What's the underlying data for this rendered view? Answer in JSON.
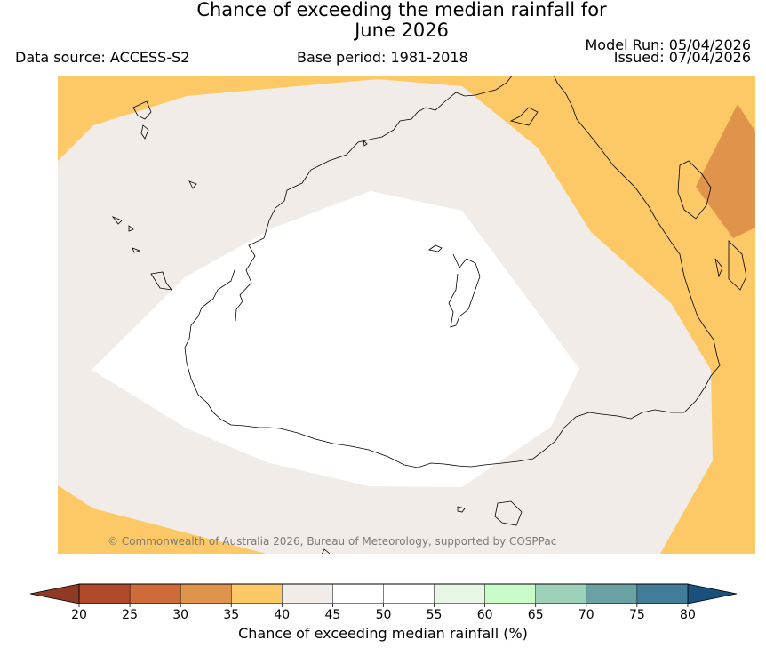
{
  "header": {
    "title_line1": "Chance of exceeding the median rainfall for",
    "title_line2": "June 2026",
    "data_source": "Data source: ACCESS-S2",
    "base_period": "Base period: 1981-2018",
    "model_run": "Model Run: 05/04/2026",
    "issued": "Issued: 07/04/2026"
  },
  "map": {
    "copyright": "© Commonwealth of Australia 2026, Bureau of Meteorology, supported by COSPPac",
    "region_colors": {
      "35-40": "#fdc966",
      "30-35": "#e0934a",
      "40-45": "#f1ece7",
      "45-55": "#ffffff"
    },
    "coastline_color": "#000000"
  },
  "colorbar": {
    "label": "Chance of exceeding median rainfall (%)",
    "ticks": [
      "20",
      "25",
      "30",
      "35",
      "40",
      "45",
      "50",
      "55",
      "60",
      "65",
      "70",
      "75",
      "80"
    ],
    "under_color": "#8e3a24",
    "over_color": "#1b4f7c",
    "colors": [
      "#b04a2a",
      "#cf6a3a",
      "#e0934a",
      "#fdc966",
      "#f1ece7",
      "#ffffff",
      "#ffffff",
      "#e8f6e6",
      "#c9fbc9",
      "#9dd1b9",
      "#6aa2a4",
      "#427c98"
    ]
  }
}
